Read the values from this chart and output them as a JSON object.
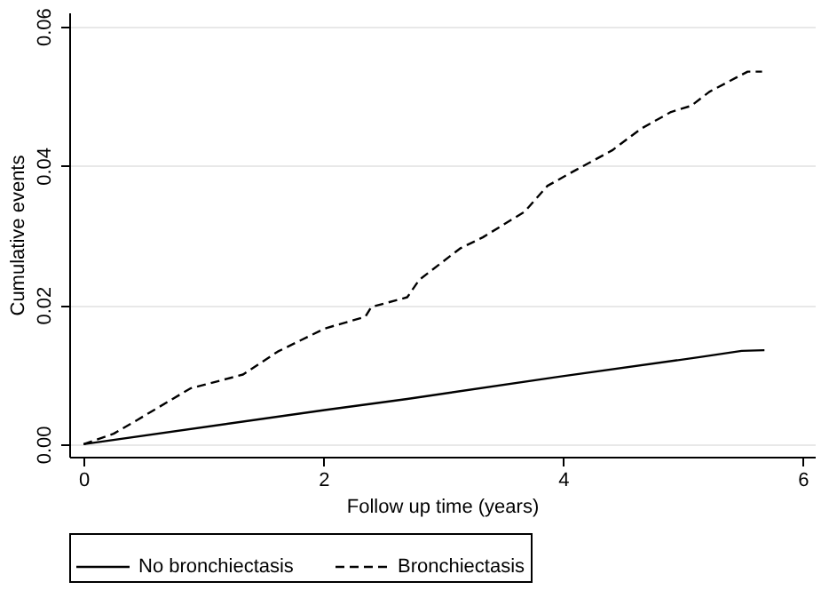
{
  "chart_data": {
    "type": "line",
    "xlabel": "Follow up time (years)",
    "ylabel": "Cumulative events",
    "xlim": [
      -0.12,
      6.1
    ],
    "ylim": [
      -0.0018,
      0.062
    ],
    "xticks": [
      0,
      2,
      4,
      6
    ],
    "yticks": [
      {
        "value": 0,
        "label": "0.00"
      },
      {
        "value": 0.02,
        "label": "0.02"
      },
      {
        "value": 0.04,
        "label": "0.04"
      },
      {
        "value": 0.06,
        "label": "0.06"
      }
    ],
    "grid": "y",
    "legend": "bottom",
    "series": [
      {
        "name": "No bronchiectasis",
        "color": "#000000",
        "line_style": "solid",
        "x": [
          0,
          2.01,
          2.7,
          3.97,
          5.14,
          5.49,
          5.68
        ],
        "values": [
          0,
          0.0049,
          0.0065,
          0.0097,
          0.0125,
          0.0134,
          0.0135
        ]
      },
      {
        "name": "Bronchiectasis",
        "color": "#000000",
        "line_style": "dashed",
        "x": [
          0,
          0.25,
          0.45,
          0.89,
          1.33,
          1.62,
          2.01,
          2.35,
          2.4,
          2.7,
          2.8,
          3.14,
          3.33,
          3.68,
          3.87,
          4.12,
          4.41,
          4.65,
          4.9,
          5.07,
          5.22,
          5.44,
          5.54,
          5.66
        ],
        "values": [
          0,
          0.0015,
          0.0035,
          0.008,
          0.01,
          0.0133,
          0.0166,
          0.0183,
          0.0197,
          0.0211,
          0.0236,
          0.0281,
          0.0297,
          0.0334,
          0.0371,
          0.0395,
          0.0422,
          0.0453,
          0.0477,
          0.0486,
          0.0506,
          0.0526,
          0.0535,
          0.0535
        ]
      }
    ]
  }
}
